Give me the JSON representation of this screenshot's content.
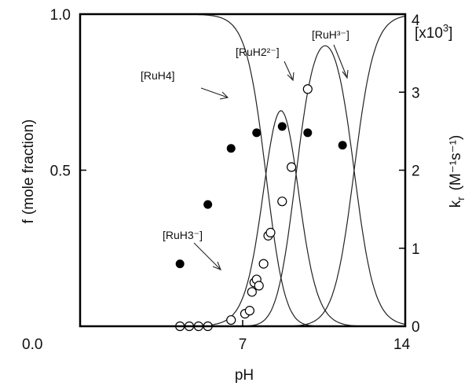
{
  "chart_data": {
    "type": "scatter",
    "xlabel": "pH",
    "xlim": [
      0,
      14
    ],
    "x_ticks": [
      "0.0",
      "7",
      "14"
    ],
    "left_axis": {
      "label": "f",
      "label_suffix": "(mole fraction)",
      "lim": [
        0,
        1
      ],
      "ticks": [
        "0.0",
        "0.5",
        "1.0"
      ]
    },
    "right_axis": {
      "label_main": "k",
      "label_sub": "r",
      "label_units": "(M⁻¹s⁻¹)",
      "lim": [
        0,
        4
      ],
      "ticks": [
        "0",
        "1",
        "2",
        "3",
        "4"
      ],
      "multiplier": "[x10",
      "multiplier_exp": "3",
      "multiplier_close": "]"
    },
    "species": [
      {
        "id": "ruh3",
        "label": "[RuH3⁻]",
        "arrow": "lower-right"
      },
      {
        "id": "ruh4",
        "label": "[RuH4]",
        "arrow": "lower-right"
      },
      {
        "id": "ruh2",
        "label": "[RuH2²⁻]",
        "arrow": "lower-right"
      },
      {
        "id": "ruh",
        "label": "[RuH³⁻]",
        "arrow": "lower-right"
      }
    ],
    "pKa": [
      8.0,
      9.3,
      11.8
    ],
    "filled_series": {
      "marker": "filled-circle",
      "points": [
        [
          4.3,
          0.2
        ],
        [
          5.5,
          0.39
        ],
        [
          6.5,
          0.57
        ],
        [
          7.6,
          0.62
        ],
        [
          8.7,
          0.64
        ],
        [
          9.8,
          0.62
        ],
        [
          11.3,
          0.58
        ]
      ]
    },
    "open_series": {
      "marker": "open-circle",
      "points": [
        [
          4.3,
          0.0
        ],
        [
          4.7,
          0.0
        ],
        [
          5.1,
          0.0
        ],
        [
          5.5,
          0.0
        ],
        [
          6.5,
          0.02
        ],
        [
          7.1,
          0.04
        ],
        [
          7.3,
          0.05
        ],
        [
          7.4,
          0.11
        ],
        [
          7.5,
          0.14
        ],
        [
          7.6,
          0.15
        ],
        [
          7.7,
          0.13
        ],
        [
          7.9,
          0.2
        ],
        [
          8.1,
          0.29
        ],
        [
          8.2,
          0.3
        ],
        [
          8.7,
          0.4
        ],
        [
          9.1,
          0.51
        ],
        [
          9.8,
          0.76
        ]
      ]
    }
  }
}
